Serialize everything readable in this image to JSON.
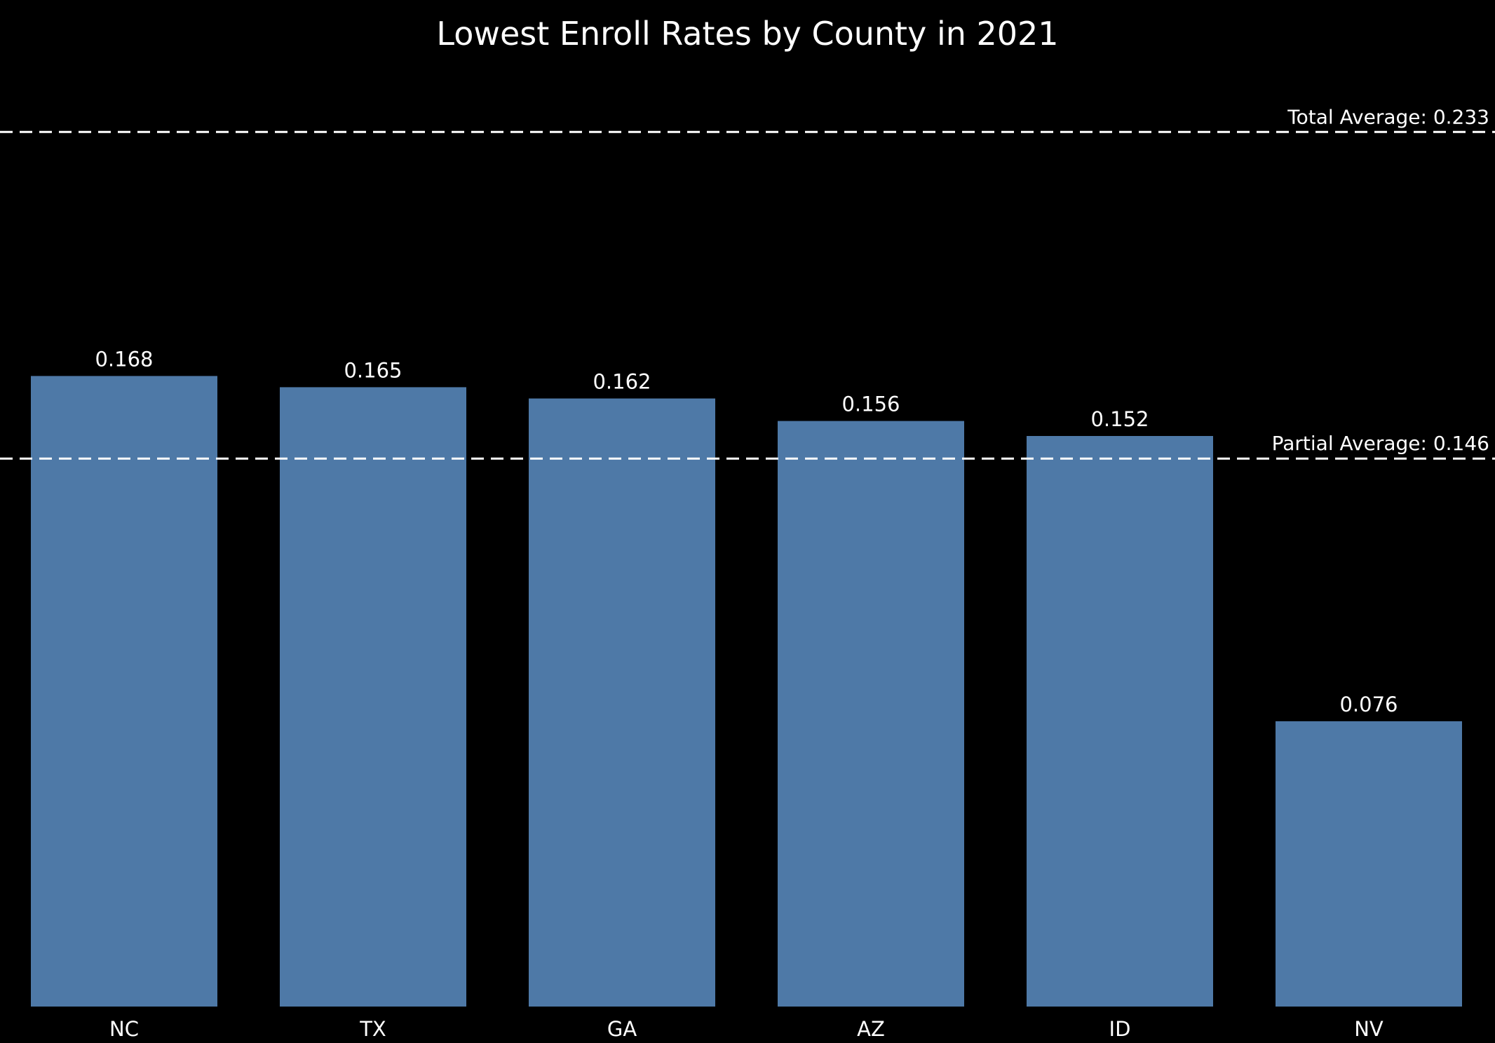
{
  "chart_data": {
    "type": "bar",
    "title": "Lowest Enroll Rates by County in 2021",
    "xlabel": "",
    "ylabel": "",
    "categories": [
      "NC",
      "TX",
      "GA",
      "AZ",
      "ID",
      "NV"
    ],
    "values": [
      0.168,
      0.165,
      0.162,
      0.156,
      0.152,
      0.076
    ],
    "value_labels": [
      "0.168",
      "0.165",
      "0.162",
      "0.156",
      "0.152",
      "0.076"
    ],
    "ylim": [
      0,
      0.2345
    ],
    "grid": false,
    "bar_color": "#4e79a7",
    "background": "#000000",
    "text_color": "#ffffff",
    "reference_lines": [
      {
        "label": "Total Average: 0.233",
        "value": 0.233
      },
      {
        "label": "Partial Average: 0.146",
        "value": 0.146
      }
    ]
  }
}
